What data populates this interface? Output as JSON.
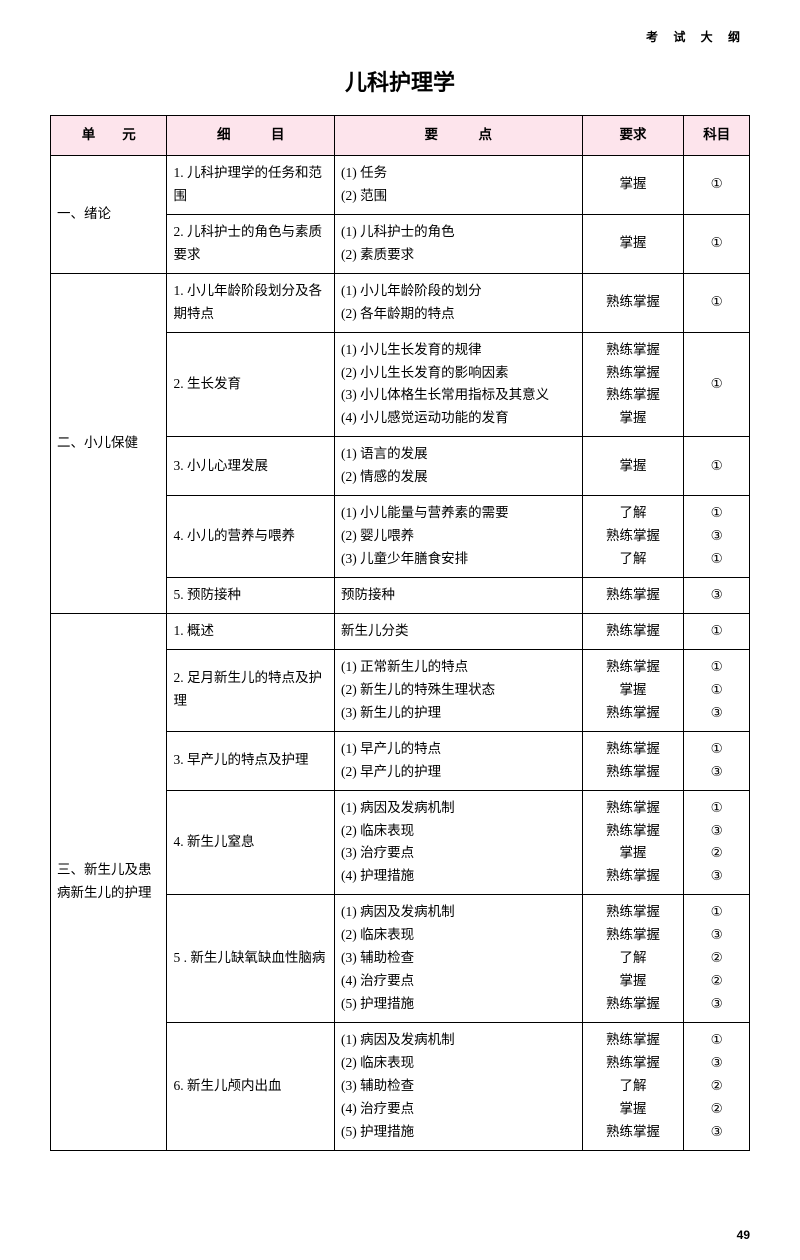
{
  "header_top": "考 试 大 纲",
  "title": "儿科护理学",
  "page_number": "49",
  "colors": {
    "header_bg": "#fde4ec",
    "border": "#000000",
    "text": "#000000",
    "page_bg": "#ffffff"
  },
  "columns": {
    "unit": "单　　元",
    "detail": "细　　　目",
    "point": "要　　　点",
    "req": "要求",
    "subj": "科目"
  },
  "rows": [
    {
      "unit": "一、绪论",
      "unit_rowspan": 2,
      "detail": "1. 儿科护理学的任务和范围",
      "point": "(1) 任务\n(2) 范围",
      "req": "掌握",
      "subj": "①"
    },
    {
      "detail": "2. 儿科护士的角色与素质要求",
      "point": "(1) 儿科护士的角色\n(2) 素质要求",
      "req": "掌握",
      "subj": "①"
    },
    {
      "unit": "二、小儿保健",
      "unit_rowspan": 5,
      "detail": "1. 小儿年龄阶段划分及各期特点",
      "point": "(1) 小儿年龄阶段的划分\n(2) 各年龄期的特点",
      "req": "熟练掌握",
      "subj": "①"
    },
    {
      "detail": "2. 生长发育",
      "point": "(1) 小儿生长发育的规律\n(2) 小儿生长发育的影响因素\n(3) 小儿体格生长常用指标及其意义\n(4) 小儿感觉运动功能的发育",
      "req": "熟练掌握\n熟练掌握\n熟练掌握\n掌握",
      "subj": "①"
    },
    {
      "detail": "3. 小儿心理发展",
      "point": "(1) 语言的发展\n(2) 情感的发展",
      "req": "掌握",
      "subj": "①"
    },
    {
      "detail": "4. 小儿的营养与喂养",
      "point": "(1) 小儿能量与营养素的需要\n(2) 婴儿喂养\n(3) 儿童少年膳食安排",
      "req": "了解\n熟练掌握\n了解",
      "subj": "①\n③\n①"
    },
    {
      "detail": "5. 预防接种",
      "point": "预防接种",
      "req": "熟练掌握",
      "subj": "③"
    },
    {
      "unit": "三、新生儿及患病新生儿的护理",
      "unit_rowspan": 6,
      "detail": "1. 概述",
      "point": "新生儿分类",
      "req": "熟练掌握",
      "subj": "①"
    },
    {
      "detail": "2. 足月新生儿的特点及护理",
      "point": "(1) 正常新生儿的特点\n(2) 新生儿的特殊生理状态\n(3) 新生儿的护理",
      "req": "熟练掌握\n掌握\n熟练掌握",
      "subj": "①\n①\n③"
    },
    {
      "detail": "3. 早产儿的特点及护理",
      "point": "(1) 早产儿的特点\n(2) 早产儿的护理",
      "req": "熟练掌握\n熟练掌握",
      "subj": "①\n③"
    },
    {
      "detail": "4. 新生儿窒息",
      "point": "(1) 病因及发病机制\n(2) 临床表现\n(3) 治疗要点\n(4) 护理措施",
      "req": "熟练掌握\n熟练掌握\n掌握\n熟练掌握",
      "subj": "①\n③\n②\n③"
    },
    {
      "detail": "5 . 新生儿缺氧缺血性脑病",
      "point": "(1) 病因及发病机制\n(2) 临床表现\n(3) 辅助检查\n(4) 治疗要点\n(5) 护理措施",
      "req": "熟练掌握\n熟练掌握\n了解\n掌握\n熟练掌握",
      "subj": "①\n③\n②\n②\n③"
    },
    {
      "detail": "6. 新生儿颅内出血",
      "point": "(1) 病因及发病机制\n(2) 临床表现\n(3) 辅助检查\n(4) 治疗要点\n(5) 护理措施",
      "req": "熟练掌握\n熟练掌握\n了解\n掌握\n熟练掌握",
      "subj": "①\n③\n②\n②\n③"
    }
  ]
}
